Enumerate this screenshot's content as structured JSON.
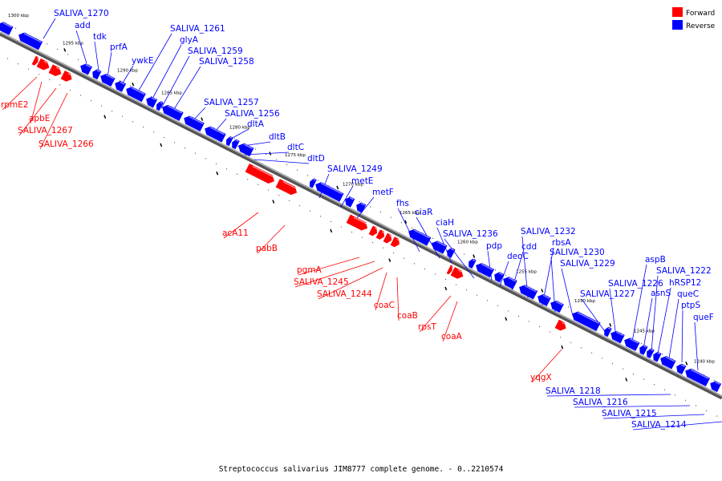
{
  "legend": {
    "forward_label": "Forward",
    "reverse_label": "Reverse",
    "forward_color": "#ff0000",
    "reverse_color": "#0000ff"
  },
  "caption": "Streptococcus salivarius JIM8777 complete genome. - 0..2210574",
  "kbp_ticks": [
    "1300 kbp",
    "1295 kbp",
    "1290 kbp",
    "1285 kbp",
    "1280 kbp",
    "1275 kbp",
    "1270 kbp",
    "1265 kbp",
    "1260 kbp",
    "1255 kbp",
    "1250 kbp",
    "1245 kbp",
    "1240 kbp"
  ],
  "genes": [
    {
      "name": "SALIVA_1270",
      "strand": "reverse"
    },
    {
      "name": "add",
      "strand": "reverse"
    },
    {
      "name": "tdk",
      "strand": "reverse"
    },
    {
      "name": "prfA",
      "strand": "reverse"
    },
    {
      "name": "ywkE",
      "strand": "reverse"
    },
    {
      "name": "SALIVA_1261",
      "strand": "reverse"
    },
    {
      "name": "glyA",
      "strand": "reverse"
    },
    {
      "name": "SALIVA_1259",
      "strand": "reverse"
    },
    {
      "name": "SALIVA_1258",
      "strand": "reverse"
    },
    {
      "name": "SALIVA_1257",
      "strand": "reverse"
    },
    {
      "name": "SALIVA_1256",
      "strand": "reverse"
    },
    {
      "name": "dltA",
      "strand": "reverse"
    },
    {
      "name": "dltB",
      "strand": "reverse"
    },
    {
      "name": "dltC",
      "strand": "reverse"
    },
    {
      "name": "dltD",
      "strand": "reverse"
    },
    {
      "name": "SALIVA_1249",
      "strand": "reverse"
    },
    {
      "name": "metE",
      "strand": "reverse"
    },
    {
      "name": "metF",
      "strand": "reverse"
    },
    {
      "name": "fhs",
      "strand": "reverse"
    },
    {
      "name": "ciaR",
      "strand": "reverse"
    },
    {
      "name": "ciaH",
      "strand": "reverse"
    },
    {
      "name": "SALIVA_1236",
      "strand": "reverse"
    },
    {
      "name": "pdp",
      "strand": "reverse"
    },
    {
      "name": "deoC",
      "strand": "reverse"
    },
    {
      "name": "cdd",
      "strand": "reverse"
    },
    {
      "name": "SALIVA_1232",
      "strand": "reverse"
    },
    {
      "name": "rbsA",
      "strand": "reverse"
    },
    {
      "name": "SALIVA_1230",
      "strand": "reverse"
    },
    {
      "name": "SALIVA_1229",
      "strand": "reverse"
    },
    {
      "name": "SALIVA_1227",
      "strand": "reverse"
    },
    {
      "name": "SALIVA_1226",
      "strand": "reverse"
    },
    {
      "name": "aspB",
      "strand": "reverse"
    },
    {
      "name": "asnS",
      "strand": "reverse"
    },
    {
      "name": "SALIVA_1222",
      "strand": "reverse"
    },
    {
      "name": "hRSP12",
      "strand": "reverse"
    },
    {
      "name": "queC",
      "strand": "reverse"
    },
    {
      "name": "ptpS",
      "strand": "reverse"
    },
    {
      "name": "queF",
      "strand": "reverse"
    },
    {
      "name": "SALIVA_1218",
      "strand": "reverse"
    },
    {
      "name": "SALIVA_1216",
      "strand": "reverse"
    },
    {
      "name": "SALIVA_1215",
      "strand": "reverse"
    },
    {
      "name": "SALIVA_1214",
      "strand": "reverse"
    },
    {
      "name": "rpmE2",
      "strand": "forward"
    },
    {
      "name": "apbE",
      "strand": "forward"
    },
    {
      "name": "SALIVA_1267",
      "strand": "forward"
    },
    {
      "name": "SALIVA_1266",
      "strand": "forward"
    },
    {
      "name": "acA11",
      "strand": "forward"
    },
    {
      "name": "pabB",
      "strand": "forward"
    },
    {
      "name": "pgmA",
      "strand": "forward"
    },
    {
      "name": "SALIVA_1245",
      "strand": "forward"
    },
    {
      "name": "SALIVA_1244",
      "strand": "forward"
    },
    {
      "name": "coaC",
      "strand": "forward"
    },
    {
      "name": "coaB",
      "strand": "forward"
    },
    {
      "name": "rpsT",
      "strand": "forward"
    },
    {
      "name": "coaA",
      "strand": "forward"
    },
    {
      "name": "yqgX",
      "strand": "forward"
    }
  ]
}
